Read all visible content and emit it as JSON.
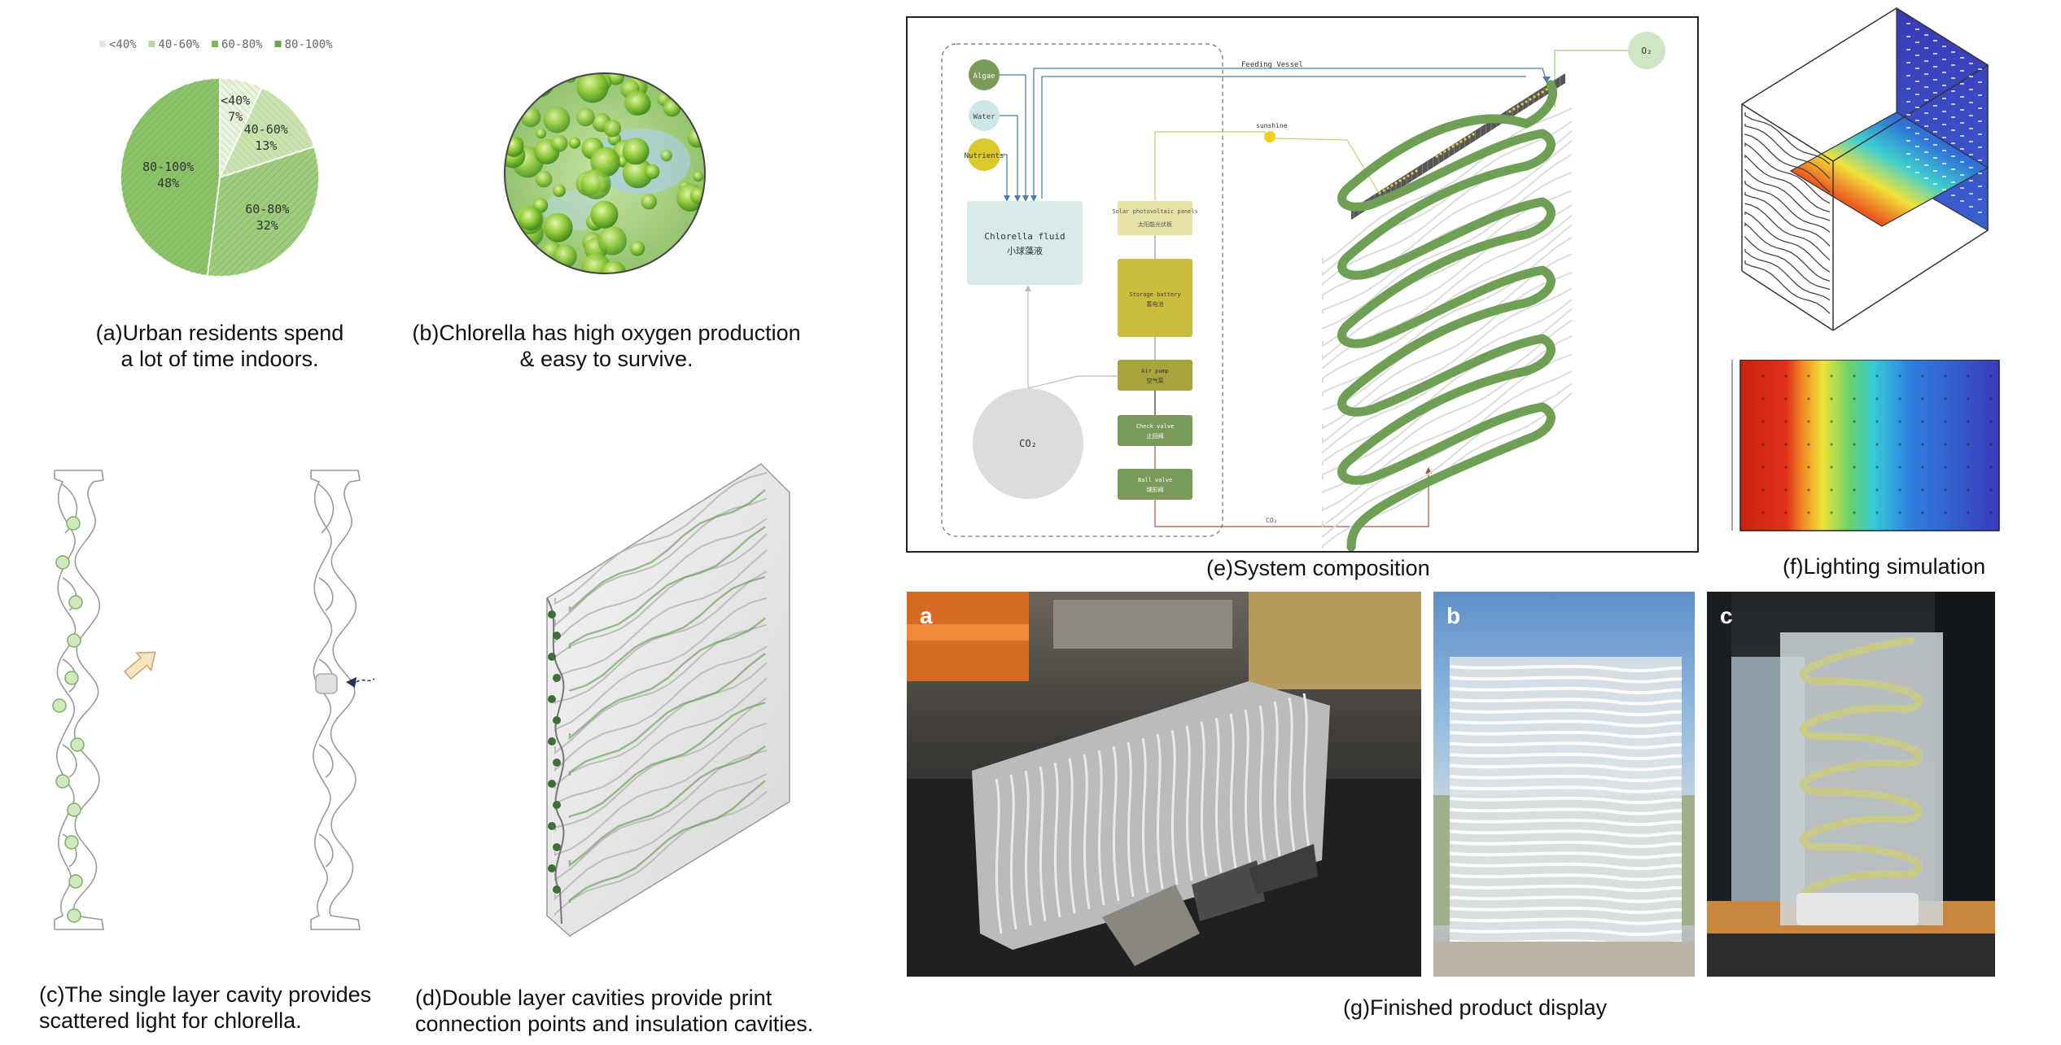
{
  "panel_a": {
    "caption_line1": "(a)Urban residents spend",
    "caption_line2": "a lot of time indoors.",
    "chart_data": {
      "type": "pie",
      "categories": [
        "<40%",
        "40-60%",
        "60-80%",
        "80-100%"
      ],
      "values": [
        7,
        13,
        32,
        48
      ],
      "labels": [
        "7%",
        "13%",
        "32%",
        "48%"
      ],
      "legend": [
        "<40%",
        "40-60%",
        "60-80%",
        "80-100%"
      ],
      "legend_position": "top",
      "colors": [
        "#e8f2dc",
        "#c9e2b0",
        "#9fcc7e",
        "#8cc36a"
      ]
    }
  },
  "panel_b": {
    "caption_line1": "(b)Chlorella has high oxygen production",
    "caption_line2": "& easy to survive."
  },
  "panel_c": {
    "caption_line1": "(c)The single layer cavity provides",
    "caption_line2": "scattered light for chlorella."
  },
  "panel_d": {
    "caption_line1": "(d)Double layer cavities provide print",
    "caption_line2": "connection points and insulation cavities."
  },
  "panel_e": {
    "caption": "(e)System composition",
    "inputs": {
      "algae": "Algae",
      "water": "Water",
      "nutrients": "Nutrients"
    },
    "chlorella_en": "Chlorella fluid",
    "chlorella_cn": "小球藻液",
    "co2": "CO₂",
    "o2": "O₂",
    "feeding_vessel": "Feeding Vessel",
    "sunshine": "sunshine",
    "co2_line": "CO₂",
    "solar_en": "Solar photovoltaic panels",
    "solar_cn": "太阳能光伏板",
    "battery_en": "Storage battery",
    "battery_cn": "蓄电池",
    "pump_en": "Air pump",
    "pump_cn": "空气泵",
    "check_en": "Check valve",
    "check_cn": "止回阀",
    "ball_en": "Ball valve",
    "ball_cn": "球形阀",
    "colors": {
      "algae": "#7a9a5a",
      "water": "#cfe6e6",
      "nutrients": "#d9c92a",
      "chlorella": "#d6eaea",
      "solar": "#e6e2a8",
      "battery": "#cbbd3c",
      "pump": "#a7a43c",
      "valve": "#7a9a5a",
      "tube": "#7aa65a"
    }
  },
  "panel_f": {
    "caption": "(f)Lighting simulation"
  },
  "panel_g": {
    "caption": "(g)Finished product display",
    "photo_a_label": "a",
    "photo_b_label": "b",
    "photo_c_label": "c"
  }
}
